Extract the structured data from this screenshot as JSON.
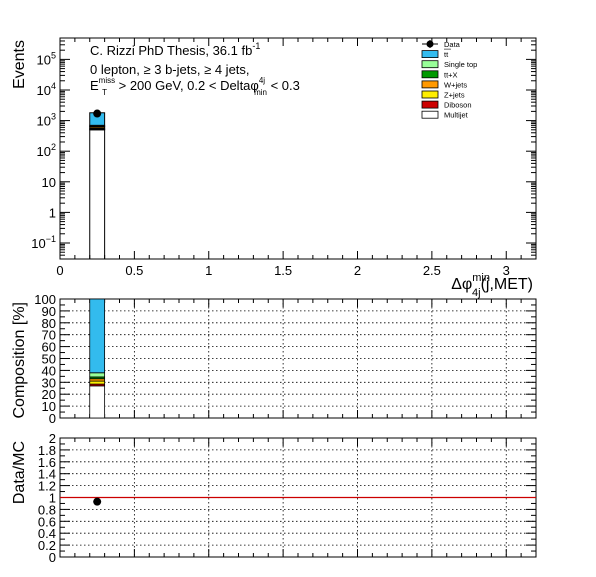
{
  "chart_data": [
    {
      "panel": "main",
      "type": "bar",
      "stacked": true,
      "yscale": "log",
      "ylabel": "Events",
      "xlabel_parts": {
        "delta": "Δφ",
        "sup": "min",
        "sub": "4j",
        "rest": "(j,MET)"
      },
      "xlim": [
        0,
        3.2
      ],
      "ylim": [
        0.03,
        500000
      ],
      "x_ticks": [
        0,
        0.5,
        1,
        1.5,
        2,
        2.5,
        3
      ],
      "x_tick_labels": [
        "0",
        "0.5",
        "1",
        "1.5",
        "2",
        "2.5",
        "3"
      ],
      "y_ticks": [
        0.1,
        1,
        10,
        100,
        1000,
        10000,
        100000
      ],
      "y_tick_labels": [
        {
          "base": "10",
          "exp": "−1"
        },
        {
          "base": "1",
          "exp": ""
        },
        {
          "base": "10",
          "exp": ""
        },
        {
          "base": "10",
          "exp": "2"
        },
        {
          "base": "10",
          "exp": "3"
        },
        {
          "base": "10",
          "exp": "4"
        },
        {
          "base": "10",
          "exp": "5"
        }
      ],
      "bin": [
        0.2,
        0.3
      ],
      "stack": [
        {
          "name": "Multijet",
          "value": 500,
          "color": "#ffffff"
        },
        {
          "name": "Diboson",
          "value": 20,
          "color": "#cc0000"
        },
        {
          "name": "Z+jets",
          "value": 35,
          "color": "#ffee00"
        },
        {
          "name": "W+jets",
          "value": 60,
          "color": "#ff9900"
        },
        {
          "name": "ttX",
          "value": 30,
          "color": "#009900"
        },
        {
          "name": "Single top",
          "value": 55,
          "color": "#99ff99"
        },
        {
          "name": "ttbar",
          "value": 1100,
          "color": "#33bbee"
        }
      ],
      "data_point": {
        "x": 0.25,
        "y": 1700
      },
      "annotations": {
        "line1_prefix": "C. Rizzi PhD Thesis, 36.1 fb",
        "line1_sup": "-1",
        "line2": "0 lepton, ≥ 3 b-jets, ≥ 4 jets,",
        "line3_e": "E",
        "line3_e_sup": "miss",
        "line3_e_sub": "T",
        "line3_mid": " > 200 GeV, 0.2 < Deltaφ",
        "line3_phi_sup": "4j",
        "line3_phi_sub": "min",
        "line3_end": " < 0.3"
      },
      "legend": {
        "placement": "top-right",
        "entries": [
          {
            "label": "Data",
            "kind": "marker",
            "color": "#000000"
          },
          {
            "label": "tt",
            "bar": true,
            "kind": "box",
            "color": "#33bbee"
          },
          {
            "label": "Single top",
            "kind": "box",
            "color": "#99ff99"
          },
          {
            "label": "tt+X",
            "kind": "box",
            "color": "#009900"
          },
          {
            "label": "W+jets",
            "kind": "box",
            "color": "#ff9900"
          },
          {
            "label": "Z+jets",
            "kind": "box",
            "color": "#ffee00"
          },
          {
            "label": "Diboson",
            "kind": "box",
            "color": "#cc0000"
          },
          {
            "label": "Multijet",
            "kind": "box",
            "color": "#ffffff"
          }
        ]
      }
    },
    {
      "panel": "composition",
      "type": "bar",
      "stacked": true,
      "ylabel": "Composition [%]",
      "ylim": [
        0,
        100
      ],
      "y_ticks": [
        0,
        10,
        20,
        30,
        40,
        50,
        60,
        70,
        80,
        90,
        100
      ],
      "y_tick_labels": [
        "0",
        "10",
        "20",
        "30",
        "40",
        "50",
        "60",
        "70",
        "80",
        "90",
        "100"
      ],
      "grid": true,
      "xlim": [
        0,
        3.2
      ],
      "bin": [
        0.2,
        0.3
      ],
      "stack": [
        {
          "name": "Multijet",
          "value": 27,
          "color": "#ffffff"
        },
        {
          "name": "Diboson",
          "value": 1.5,
          "color": "#cc0000"
        },
        {
          "name": "Z+jets",
          "value": 2.5,
          "color": "#ffee00"
        },
        {
          "name": "W+jets",
          "value": 2,
          "color": "#ff9900"
        },
        {
          "name": "ttX",
          "value": 1.5,
          "color": "#009900"
        },
        {
          "name": "Single top",
          "value": 3.5,
          "color": "#99ff99"
        },
        {
          "name": "ttbar",
          "value": 62,
          "color": "#33bbee"
        }
      ]
    },
    {
      "panel": "ratio",
      "type": "scatter",
      "ylabel": "Data/MC",
      "ylim": [
        0,
        2
      ],
      "y_ticks": [
        0,
        0.2,
        0.4,
        0.6,
        0.8,
        1,
        1.2,
        1.4,
        1.6,
        1.8,
        2
      ],
      "y_tick_labels": [
        "0",
        "0.2",
        "0.4",
        "0.6",
        "0.8",
        "1",
        "1.2",
        "1.4",
        "1.6",
        "1.8",
        "2"
      ],
      "grid": true,
      "xlim": [
        0,
        3.2
      ],
      "reference_line": {
        "y": 1,
        "color": "#cc0000"
      },
      "points": [
        {
          "x": 0.25,
          "y": 0.93
        }
      ]
    }
  ]
}
